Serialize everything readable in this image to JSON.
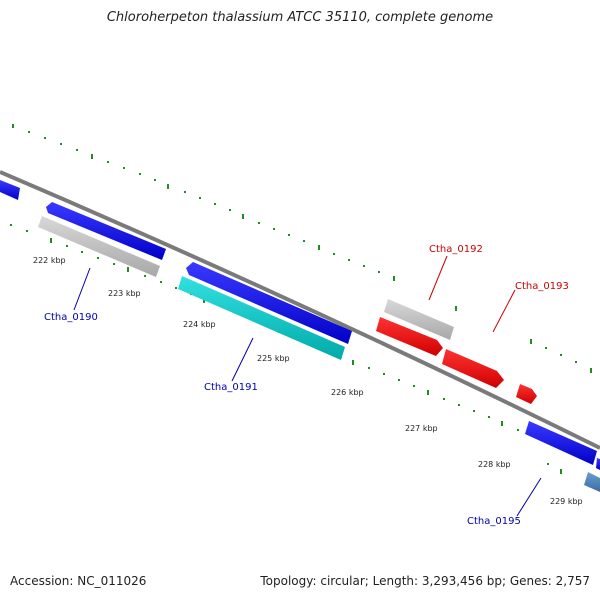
{
  "title": "Chloroherpeton thalassium ATCC 35110, complete genome",
  "accession": "Accession: NC_011026",
  "summary": "Topology: circular; Length: 3,293,456 bp; Genes: 2,757",
  "colors": {
    "backbone": "#808080",
    "ticks": "#228b22",
    "forward_gene": "#0000ee",
    "reverse_gene": "#c0c0c0",
    "cyan_gene": "#00cccc",
    "red_gene": "#ff0000",
    "steel_gene": "#4682b4",
    "label_blue": "#0000aa",
    "label_red": "#cc0000"
  },
  "kbp_labels": [
    "222 kbp",
    "223 kbp",
    "224 kbp",
    "225 kbp",
    "226 kbp",
    "227 kbp",
    "228 kbp",
    "229 kbp"
  ],
  "gene_labels": [
    {
      "text": "Ctha_0190",
      "color": "blue"
    },
    {
      "text": "Ctha_0191",
      "color": "blue"
    },
    {
      "text": "Ctha_0192",
      "color": "red"
    },
    {
      "text": "Ctha_0193",
      "color": "red"
    },
    {
      "text": "Ctha_0195",
      "color": "blue"
    }
  ]
}
